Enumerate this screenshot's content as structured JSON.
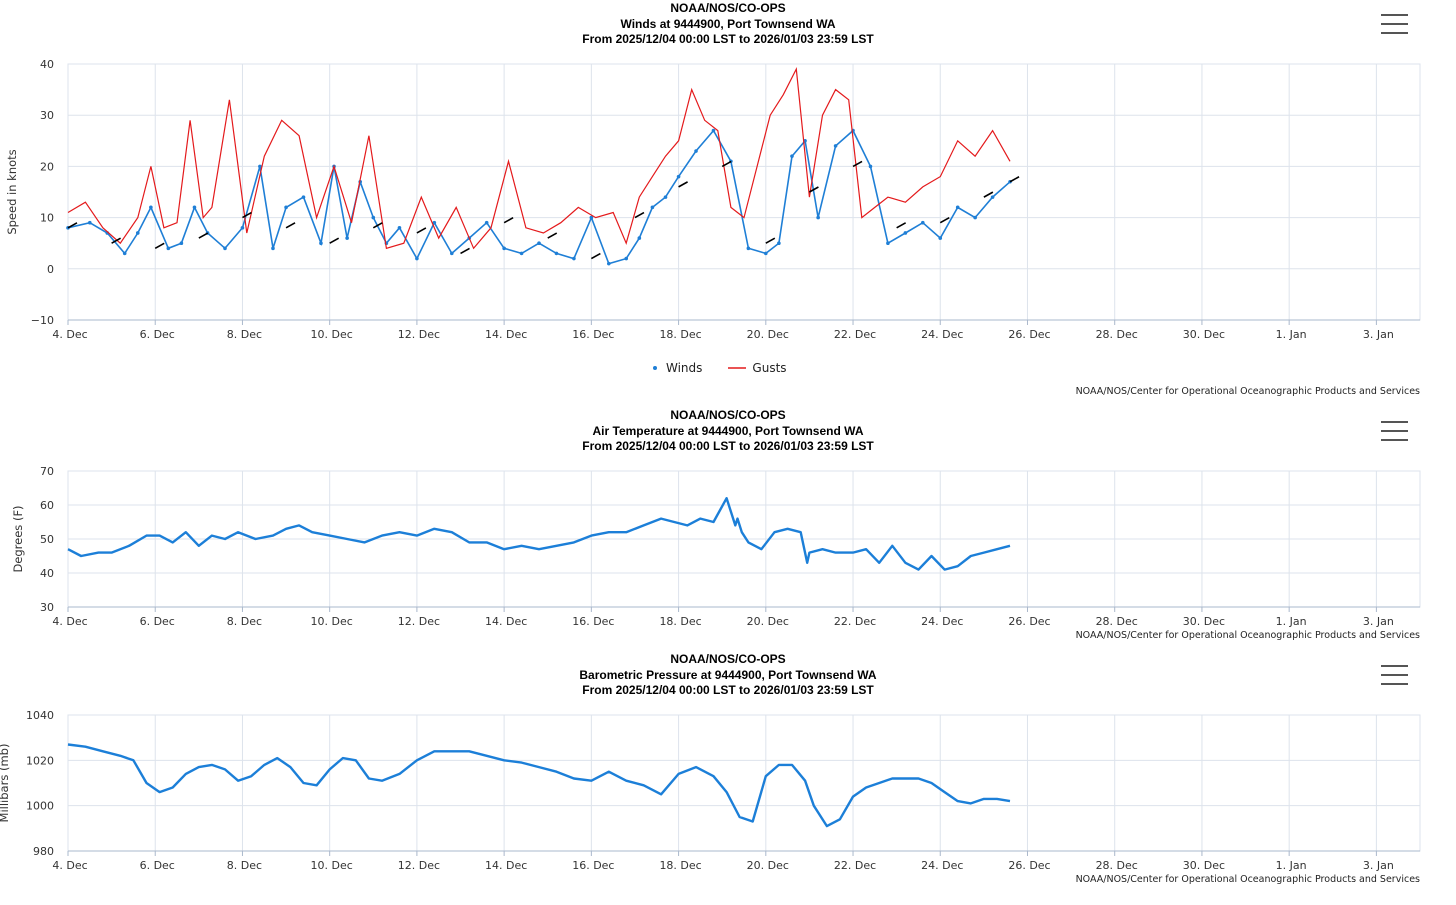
{
  "colors": {
    "winds": "#1f7fd6",
    "gusts": "#e41a1c",
    "dir": "#000000",
    "line": "#1c7fd8",
    "grid": "#dde3ec",
    "axis": "#aab8cc"
  },
  "x_ticks": [
    "4. Dec",
    "6. Dec",
    "8. Dec",
    "10. Dec",
    "12. Dec",
    "14. Dec",
    "16. Dec",
    "18. Dec",
    "20. Dec",
    "22. Dec",
    "24. Dec",
    "26. Dec",
    "28. Dec",
    "30. Dec",
    "1. Jan",
    "3. Jan"
  ],
  "credit": "NOAA/NOS/Center for Operational Oceanographic Products and Services",
  "chart_data": [
    {
      "type": "line",
      "title": "NOAA/NOS/CO-OPS",
      "subtitle": "Winds at 9444900, Port Townsend WA",
      "range_text": "From 2025/12/04 00:00 LST to 2026/01/03 23:59 LST",
      "ylabel": "Speed in knots",
      "ylim": [
        -10,
        40
      ],
      "y_ticks": [
        "40",
        "30",
        "20",
        "10",
        "0",
        "−10"
      ],
      "xlim_days": [
        0,
        31
      ],
      "legend": [
        {
          "name": "Winds",
          "icon": "dot"
        },
        {
          "name": "Gusts",
          "icon": "line"
        }
      ],
      "series": [
        {
          "name": "Winds",
          "days": [
            0,
            0.5,
            0.9,
            1.3,
            1.6,
            1.9,
            2.3,
            2.6,
            2.9,
            3.2,
            3.6,
            4,
            4.4,
            4.7,
            5,
            5.4,
            5.8,
            6.1,
            6.4,
            6.7,
            7,
            7.3,
            7.6,
            8,
            8.4,
            8.8,
            9.2,
            9.6,
            10,
            10.4,
            10.8,
            11.2,
            11.6,
            12,
            12.4,
            12.8,
            13.1,
            13.4,
            13.7,
            14,
            14.4,
            14.8,
            15.2,
            15.6,
            16,
            16.3,
            16.6,
            16.9,
            17.2,
            17.6,
            18,
            18.4,
            18.8,
            19.2,
            19.6,
            20,
            20.4,
            20.8,
            21.2,
            21.6
          ],
          "values": [
            8,
            9,
            7,
            3,
            7,
            12,
            4,
            5,
            12,
            7,
            4,
            8,
            20,
            4,
            12,
            14,
            5,
            20,
            6,
            17,
            10,
            5,
            8,
            2,
            9,
            3,
            6,
            9,
            4,
            3,
            5,
            3,
            2,
            10,
            1,
            2,
            6,
            12,
            14,
            18,
            23,
            27,
            21,
            4,
            3,
            5,
            22,
            25,
            10,
            24,
            27,
            20,
            5,
            7,
            9,
            6,
            12,
            10,
            14,
            17
          ]
        },
        {
          "name": "Gusts",
          "days": [
            0,
            0.4,
            0.8,
            1.2,
            1.6,
            1.9,
            2.2,
            2.5,
            2.8,
            3.1,
            3.3,
            3.7,
            4.1,
            4.5,
            4.9,
            5.3,
            5.7,
            6.1,
            6.5,
            6.9,
            7.3,
            7.7,
            8.1,
            8.5,
            8.9,
            9.3,
            9.7,
            10.1,
            10.5,
            10.9,
            11.3,
            11.7,
            12.1,
            12.5,
            12.8,
            13.1,
            13.4,
            13.7,
            14,
            14.3,
            14.6,
            14.9,
            15.2,
            15.5,
            15.8,
            16.1,
            16.4,
            16.7,
            17,
            17.3,
            17.6,
            17.9,
            18.2,
            18.5,
            18.8,
            19.2,
            19.6,
            20,
            20.4,
            20.8,
            21.2,
            21.6
          ],
          "values": [
            11,
            13,
            8,
            5,
            10,
            20,
            8,
            9,
            29,
            10,
            12,
            33,
            7,
            22,
            29,
            26,
            10,
            20,
            9,
            26,
            4,
            5,
            14,
            6,
            12,
            4,
            8,
            21,
            8,
            7,
            9,
            12,
            10,
            11,
            5,
            14,
            18,
            22,
            25,
            35,
            29,
            27,
            12,
            10,
            20,
            30,
            34,
            39,
            14,
            30,
            35,
            33,
            10,
            12,
            14,
            13,
            16,
            18,
            25,
            22,
            27,
            21
          ]
        },
        {
          "name": "Direction",
          "days": [
            0,
            1,
            2,
            3,
            4,
            5,
            6,
            7,
            8,
            9,
            10,
            11,
            12,
            13,
            14,
            15,
            16,
            17,
            18,
            19,
            20,
            21,
            21.6
          ],
          "values": [
            8,
            5,
            4,
            6,
            10,
            8,
            5,
            8,
            7,
            3,
            9,
            6,
            2,
            10,
            16,
            20,
            5,
            15,
            20,
            8,
            9,
            14,
            17
          ]
        }
      ]
    },
    {
      "type": "line",
      "title": "NOAA/NOS/CO-OPS",
      "subtitle": "Air Temperature at 9444900, Port Townsend WA",
      "range_text": "From 2025/12/04 00:00 LST to 2026/01/03 23:59 LST",
      "ylabel": "Degrees (F)",
      "ylim": [
        30,
        70
      ],
      "y_ticks": [
        "70",
        "60",
        "50",
        "40",
        "30"
      ],
      "xlim_days": [
        0,
        31
      ],
      "series": [
        {
          "name": "Air Temperature",
          "days": [
            0,
            0.3,
            0.7,
            1,
            1.4,
            1.8,
            2.1,
            2.4,
            2.7,
            3,
            3.3,
            3.6,
            3.9,
            4.3,
            4.7,
            5,
            5.3,
            5.6,
            6,
            6.4,
            6.8,
            7.2,
            7.6,
            8,
            8.4,
            8.8,
            9.2,
            9.6,
            10,
            10.4,
            10.8,
            11.2,
            11.6,
            12,
            12.4,
            12.8,
            13.2,
            13.6,
            13.9,
            14.2,
            14.5,
            14.8,
            15.1,
            15.3,
            15.35,
            15.45,
            15.6,
            15.9,
            16.2,
            16.5,
            16.8,
            16.95,
            17,
            17.3,
            17.6,
            18,
            18.3,
            18.6,
            18.9,
            19.2,
            19.5,
            19.8,
            20.1,
            20.4,
            20.7,
            21,
            21.3,
            21.6
          ],
          "values": [
            47,
            45,
            46,
            46,
            48,
            51,
            51,
            49,
            52,
            48,
            51,
            50,
            52,
            50,
            51,
            53,
            54,
            52,
            51,
            50,
            49,
            51,
            52,
            51,
            53,
            52,
            49,
            49,
            47,
            48,
            47,
            48,
            49,
            51,
            52,
            52,
            54,
            56,
            55,
            54,
            56,
            55,
            62,
            54,
            56,
            52,
            49,
            47,
            52,
            53,
            52,
            43,
            46,
            47,
            46,
            46,
            47,
            43,
            48,
            43,
            41,
            45,
            41,
            42,
            45,
            46,
            47,
            48
          ]
        }
      ]
    },
    {
      "type": "line",
      "title": "NOAA/NOS/CO-OPS",
      "subtitle": "Barometric Pressure at 9444900, Port Townsend WA",
      "range_text": "From 2025/12/04 00:00 LST to 2026/01/03 23:59 LST",
      "ylabel": "Millibars (mb)",
      "ylim": [
        980,
        1040
      ],
      "y_ticks": [
        "1040",
        "1020",
        "1000",
        "980"
      ],
      "xlim_days": [
        0,
        31
      ],
      "series": [
        {
          "name": "Barometric Pressure",
          "days": [
            0,
            0.4,
            0.8,
            1.2,
            1.5,
            1.8,
            2.1,
            2.4,
            2.7,
            3,
            3.3,
            3.6,
            3.9,
            4.2,
            4.5,
            4.8,
            5.1,
            5.4,
            5.7,
            6,
            6.3,
            6.6,
            6.9,
            7.2,
            7.6,
            8,
            8.4,
            8.8,
            9.2,
            9.6,
            10,
            10.4,
            10.8,
            11.2,
            11.6,
            12,
            12.4,
            12.8,
            13.2,
            13.6,
            14,
            14.4,
            14.8,
            15.1,
            15.4,
            15.7,
            16,
            16.3,
            16.6,
            16.9,
            17.1,
            17.4,
            17.7,
            18,
            18.3,
            18.6,
            18.9,
            19.2,
            19.5,
            19.8,
            20.1,
            20.4,
            20.7,
            21,
            21.3,
            21.6
          ],
          "values": [
            1027,
            1026,
            1024,
            1022,
            1020,
            1010,
            1006,
            1008,
            1014,
            1017,
            1018,
            1016,
            1011,
            1013,
            1018,
            1021,
            1017,
            1010,
            1009,
            1016,
            1021,
            1020,
            1012,
            1011,
            1014,
            1020,
            1024,
            1024,
            1024,
            1022,
            1020,
            1019,
            1017,
            1015,
            1012,
            1011,
            1015,
            1011,
            1009,
            1005,
            1014,
            1017,
            1013,
            1006,
            995,
            993,
            1013,
            1018,
            1018,
            1011,
            1000,
            991,
            994,
            1004,
            1008,
            1010,
            1012,
            1012,
            1012,
            1010,
            1006,
            1002,
            1001,
            1003,
            1003,
            1002
          ]
        }
      ]
    }
  ]
}
